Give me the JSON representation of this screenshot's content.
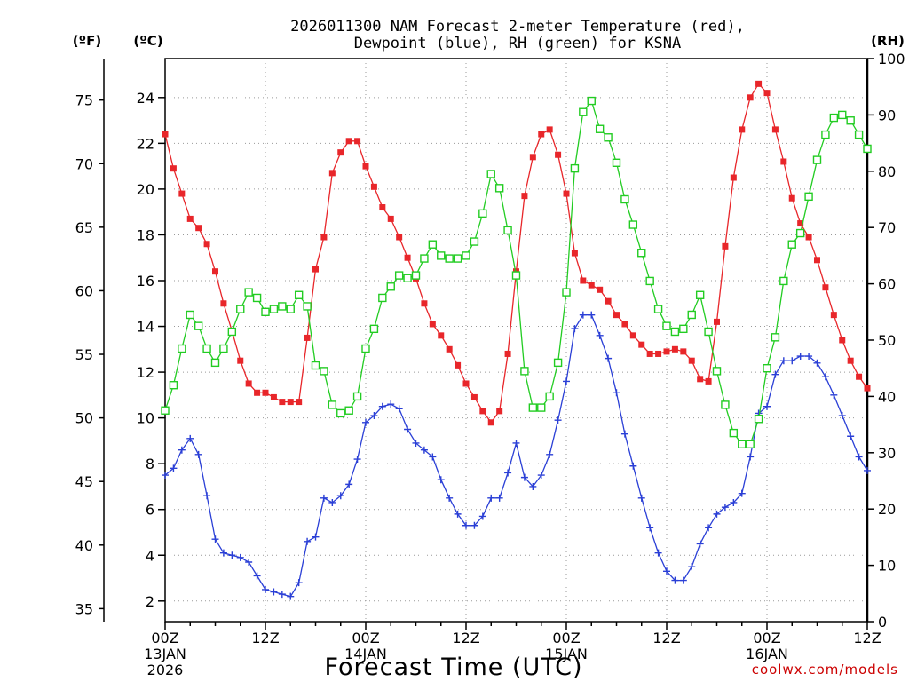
{
  "chart_data": {
    "type": "line",
    "title_line1": "2026011300 NAM Forecast 2-meter Temperature (red),",
    "title_line2": "Dewpoint (blue), RH (green) for KSNA",
    "xlabel": "Forecast Time (UTC)",
    "credit": "coolwx.com/models",
    "units": {
      "fahrenheit": "(ºF)",
      "celsius": "(ºC)",
      "rh": "(RH)"
    },
    "x_range_hours": [
      0,
      84
    ],
    "celsius_range": [
      1.1,
      25.7
    ],
    "rh_range": [
      0,
      100
    ],
    "grid": true,
    "x_ticks": [
      {
        "hour": 0,
        "label": "00Z",
        "sub1": "13JAN",
        "sub2": "2026"
      },
      {
        "hour": 12,
        "label": "12Z",
        "sub1": "",
        "sub2": ""
      },
      {
        "hour": 24,
        "label": "00Z",
        "sub1": "14JAN",
        "sub2": ""
      },
      {
        "hour": 36,
        "label": "12Z",
        "sub1": "",
        "sub2": ""
      },
      {
        "hour": 48,
        "label": "00Z",
        "sub1": "15JAN",
        "sub2": ""
      },
      {
        "hour": 60,
        "label": "12Z",
        "sub1": "",
        "sub2": ""
      },
      {
        "hour": 72,
        "label": "00Z",
        "sub1": "16JAN",
        "sub2": ""
      },
      {
        "hour": 84,
        "label": "12Z",
        "sub1": "",
        "sub2": ""
      }
    ],
    "celsius_ticks": [
      2,
      4,
      6,
      8,
      10,
      12,
      14,
      16,
      18,
      20,
      22,
      24
    ],
    "fahrenheit_ticks": [
      35,
      40,
      45,
      50,
      55,
      60,
      65,
      70,
      75
    ],
    "rh_ticks": [
      0,
      10,
      20,
      30,
      40,
      50,
      60,
      70,
      80,
      90,
      100
    ],
    "x_hours": [
      0,
      1,
      2,
      3,
      4,
      5,
      6,
      7,
      8,
      9,
      10,
      11,
      12,
      13,
      14,
      15,
      16,
      17,
      18,
      19,
      20,
      21,
      22,
      23,
      24,
      25,
      26,
      27,
      28,
      29,
      30,
      31,
      32,
      33,
      34,
      35,
      36,
      37,
      38,
      39,
      40,
      41,
      42,
      43,
      44,
      45,
      46,
      47,
      48,
      49,
      50,
      51,
      52,
      53,
      54,
      55,
      56,
      57,
      58,
      59,
      60,
      61,
      62,
      63,
      64,
      65,
      66,
      67,
      68,
      69,
      70,
      71,
      72,
      73,
      74,
      75,
      76,
      77,
      78,
      79,
      80,
      81,
      82,
      83,
      84
    ],
    "series": [
      {
        "key": "temperature",
        "axis": "celsius",
        "color": "#e8262a",
        "marker": "filled-square",
        "values": [
          22.4,
          20.9,
          19.8,
          18.7,
          18.3,
          17.6,
          16.4,
          15.0,
          13.8,
          12.5,
          11.5,
          11.1,
          11.1,
          10.9,
          10.7,
          10.7,
          10.7,
          13.5,
          16.5,
          17.9,
          20.7,
          21.6,
          22.1,
          22.1,
          21.0,
          20.1,
          19.2,
          18.7,
          17.9,
          17.0,
          16.1,
          15.0,
          14.1,
          13.6,
          13.0,
          12.3,
          11.5,
          10.9,
          10.3,
          9.8,
          10.3,
          12.8,
          16.4,
          19.7,
          21.4,
          22.4,
          22.6,
          21.5,
          19.8,
          17.2,
          16.0,
          15.8,
          15.6,
          15.1,
          14.5,
          14.1,
          13.6,
          13.2,
          12.8,
          12.8,
          12.9,
          13.0,
          12.9,
          12.5,
          11.7,
          11.6,
          14.2,
          17.5,
          20.5,
          22.6,
          24.0,
          24.6,
          24.2,
          22.6,
          21.2,
          19.6,
          18.5,
          17.9,
          16.9,
          15.7,
          14.5,
          13.4,
          12.5,
          11.8,
          11.3
        ]
      },
      {
        "key": "dewpoint",
        "axis": "celsius",
        "color": "#2a3fd6",
        "marker": "plus",
        "values": [
          7.5,
          7.8,
          8.6,
          9.1,
          8.4,
          6.6,
          4.7,
          4.1,
          4.0,
          3.9,
          3.7,
          3.1,
          2.5,
          2.4,
          2.3,
          2.2,
          2.8,
          4.6,
          4.8,
          6.5,
          6.3,
          6.6,
          7.1,
          8.2,
          9.8,
          10.1,
          10.5,
          10.6,
          10.4,
          9.5,
          8.9,
          8.6,
          8.3,
          7.3,
          6.5,
          5.8,
          5.3,
          5.3,
          5.7,
          6.5,
          6.5,
          7.6,
          8.9,
          7.4,
          7.0,
          7.5,
          8.4,
          9.9,
          11.6,
          13.9,
          14.5,
          14.5,
          13.6,
          12.6,
          11.1,
          9.3,
          7.9,
          6.5,
          5.2,
          4.1,
          3.3,
          2.9,
          2.9,
          3.5,
          4.5,
          5.2,
          5.8,
          6.1,
          6.3,
          6.7,
          8.3,
          10.2,
          10.5,
          11.9,
          12.5,
          12.5,
          12.7,
          12.7,
          12.4,
          11.8,
          11.0,
          10.1,
          9.2,
          8.3,
          7.7
        ]
      },
      {
        "key": "rh",
        "axis": "rh",
        "color": "#22cc22",
        "marker": "open-square",
        "values": [
          37.5,
          42.0,
          48.5,
          54.5,
          52.5,
          48.5,
          46.0,
          48.5,
          51.5,
          55.5,
          58.5,
          57.5,
          55.0,
          55.5,
          56.0,
          55.5,
          58.0,
          56.0,
          45.5,
          44.5,
          38.5,
          37.0,
          37.5,
          40.0,
          48.5,
          52.0,
          57.5,
          59.5,
          61.5,
          61.0,
          61.5,
          64.5,
          67.0,
          65.0,
          64.5,
          64.5,
          65.0,
          67.5,
          72.5,
          79.5,
          77.0,
          69.5,
          61.5,
          44.5,
          38.0,
          38.0,
          40.0,
          46.0,
          58.5,
          80.5,
          90.5,
          92.5,
          87.5,
          86.0,
          81.5,
          75.0,
          70.5,
          65.5,
          60.5,
          55.5,
          52.5,
          51.5,
          52.0,
          54.5,
          58.0,
          51.5,
          44.5,
          38.5,
          33.5,
          31.5,
          31.5,
          36.0,
          45.0,
          50.5,
          60.5,
          67.0,
          69.0,
          75.5,
          82.0,
          86.5,
          89.5,
          90.0,
          89.0,
          86.5,
          84.0
        ]
      }
    ]
  }
}
